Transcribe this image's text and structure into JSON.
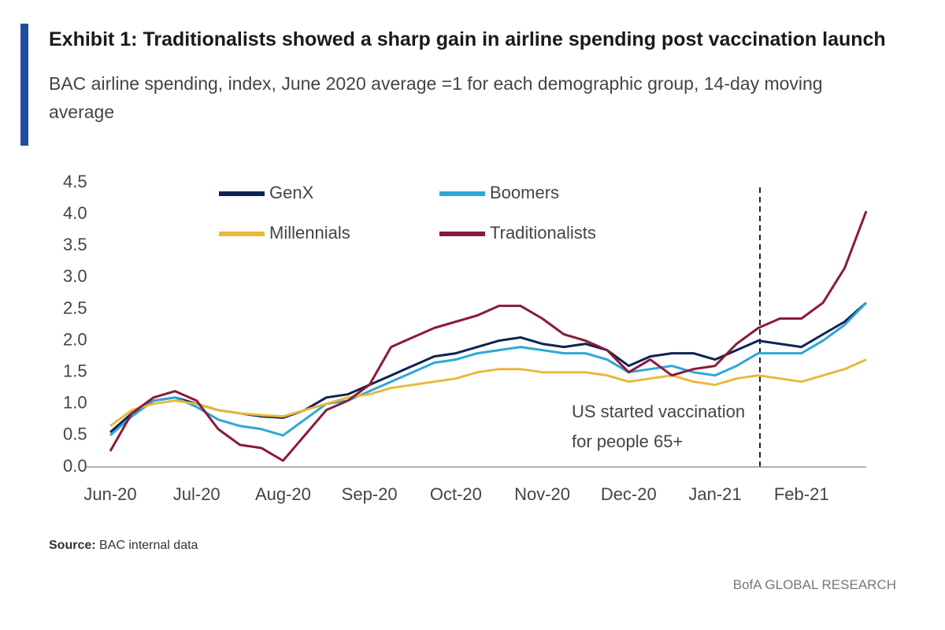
{
  "chart_data": {
    "type": "line",
    "title": "Exhibit 1: Traditionalists showed a sharp gain in airline spending post vaccination launch",
    "subtitle": "BAC airline spending, index, June 2020 average =1 for each demographic group, 14-day moving average",
    "source_label": "Source:",
    "source": "BAC internal data",
    "footer": "BofA GLOBAL RESEARCH",
    "annotation": [
      "US started vaccination",
      "for people 65+"
    ],
    "categories": [
      "Jun-20",
      null,
      null,
      null,
      "Jul-20",
      null,
      null,
      null,
      "Aug-20",
      null,
      null,
      null,
      "Sep-20",
      null,
      null,
      null,
      "Oct-20",
      null,
      null,
      null,
      "Nov-20",
      null,
      null,
      null,
      "Dec-20",
      null,
      null,
      null,
      "Jan-21",
      null,
      null,
      null,
      "Feb-21",
      null,
      null,
      null
    ],
    "ylim": [
      0,
      4.5
    ],
    "yticks": [
      {
        "value": 0,
        "label": "0.0"
      },
      0.5,
      {
        "value": 1,
        "label": "1.0"
      },
      1.5,
      {
        "value": 2,
        "label": "2.0"
      },
      2.5,
      {
        "value": 3,
        "label": "3.0"
      },
      3.5,
      {
        "value": 4,
        "label": "4.0"
      },
      4.5
    ],
    "grid": false,
    "series": [
      {
        "name": "GenX",
        "color": "#0d2352",
        "values": [
          0.55,
          0.85,
          1.05,
          1.1,
          1.0,
          0.9,
          0.85,
          0.8,
          0.78,
          0.9,
          1.1,
          1.15,
          1.3,
          1.45,
          1.6,
          1.75,
          1.8,
          1.9,
          2.0,
          2.05,
          1.95,
          1.9,
          1.95,
          1.85,
          1.6,
          1.75,
          1.8,
          1.8,
          1.7,
          1.85,
          2.0,
          1.95,
          1.9,
          2.1,
          2.3,
          2.6
        ]
      },
      {
        "name": "Boomers",
        "color": "#2ea8d6",
        "values": [
          0.5,
          0.8,
          1.05,
          1.1,
          0.95,
          0.75,
          0.65,
          0.6,
          0.5,
          0.75,
          1.0,
          1.05,
          1.2,
          1.35,
          1.5,
          1.65,
          1.7,
          1.8,
          1.85,
          1.9,
          1.85,
          1.8,
          1.8,
          1.7,
          1.5,
          1.55,
          1.6,
          1.5,
          1.45,
          1.6,
          1.8,
          1.8,
          1.8,
          2.0,
          2.25,
          2.6
        ]
      },
      {
        "name": "Millennials",
        "color": "#e8b93a",
        "values": [
          0.65,
          0.9,
          1.0,
          1.05,
          1.0,
          0.9,
          0.85,
          0.82,
          0.8,
          0.9,
          1.0,
          1.1,
          1.15,
          1.25,
          1.3,
          1.35,
          1.4,
          1.5,
          1.55,
          1.55,
          1.5,
          1.5,
          1.5,
          1.45,
          1.35,
          1.4,
          1.45,
          1.35,
          1.3,
          1.4,
          1.45,
          1.4,
          1.35,
          1.45,
          1.55,
          1.7
        ]
      },
      {
        "name": "Traditionalists",
        "color": "#8b1a3a",
        "values": [
          0.25,
          0.85,
          1.1,
          1.2,
          1.05,
          0.6,
          0.35,
          0.3,
          0.1,
          0.5,
          0.9,
          1.05,
          1.3,
          1.9,
          2.05,
          2.2,
          2.3,
          2.4,
          2.55,
          2.55,
          2.35,
          2.1,
          2.0,
          1.85,
          1.5,
          1.7,
          1.45,
          1.55,
          1.6,
          1.95,
          2.2,
          2.35,
          2.35,
          2.6,
          3.15,
          4.05
        ]
      }
    ]
  }
}
